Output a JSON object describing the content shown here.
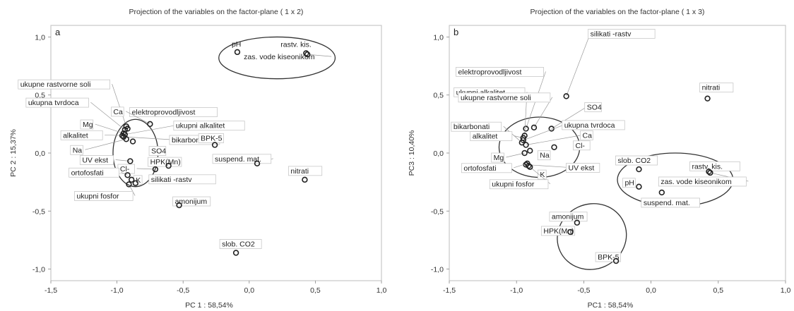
{
  "chart_data": [
    {
      "type": "scatter",
      "title": "Projection of the variables on the factor-plane (  1 x  2)",
      "panel_label": "a",
      "xlabel": "PC 1 : 58,54%",
      "ylabel": "PC 2 : 15,37%",
      "xlim": [
        -1.5,
        1.0
      ],
      "ylim": [
        -1.1,
        1.1
      ],
      "xticks": [
        "-1,5",
        "-1,0",
        "-0,5",
        "0,0",
        "0,5",
        "1,0"
      ],
      "yticks": [
        "1,0",
        "0,5",
        "0,0",
        "-0,5",
        "-1,0"
      ],
      "grid": false,
      "points": [
        {
          "label": "pH",
          "x": -0.09,
          "y": 0.87
        },
        {
          "label": "rastv. kis.",
          "x": 0.43,
          "y": 0.86
        },
        {
          "label": "zas. vode kiseonikom",
          "x": 0.44,
          "y": 0.85
        },
        {
          "label": "ukupne rastvorne soli",
          "x": -0.93,
          "y": 0.23
        },
        {
          "label": "ukupna tvrdoca",
          "x": -0.94,
          "y": 0.2
        },
        {
          "label": "elektroprovodljivost",
          "x": -0.92,
          "y": 0.21
        },
        {
          "label": "Mg",
          "x": -0.95,
          "y": 0.17
        },
        {
          "label": "alkalitet",
          "x": -0.96,
          "y": 0.15
        },
        {
          "label": "Ca",
          "x": -0.75,
          "y": 0.25
        },
        {
          "label": "ukupni alkalitet",
          "x": -0.94,
          "y": 0.16
        },
        {
          "label": "bikarbonati",
          "x": -0.95,
          "y": 0.14
        },
        {
          "label": "Na",
          "x": -0.93,
          "y": 0.12
        },
        {
          "label": "SO4",
          "x": -0.88,
          "y": 0.1
        },
        {
          "label": "BPK-5",
          "x": -0.26,
          "y": 0.07
        },
        {
          "label": "UV ekst",
          "x": -0.9,
          "y": -0.07
        },
        {
          "label": "HPK(Mn)",
          "x": -0.61,
          "y": -0.11
        },
        {
          "label": "Cl-",
          "x": -0.71,
          "y": -0.14
        },
        {
          "label": "suspend. mat.",
          "x": 0.06,
          "y": -0.09
        },
        {
          "label": "ortofosfati",
          "x": -0.92,
          "y": -0.19
        },
        {
          "label": "K",
          "x": -0.89,
          "y": -0.23
        },
        {
          "label": "silikati -rastv",
          "x": -0.86,
          "y": -0.26
        },
        {
          "label": "nitrati",
          "x": 0.42,
          "y": -0.23
        },
        {
          "label": "ukupni fosfor",
          "x": -0.91,
          "y": -0.27
        },
        {
          "label": "amonijum",
          "x": -0.53,
          "y": -0.45
        },
        {
          "label": "slob. CO2",
          "x": -0.1,
          "y": -0.86
        }
      ],
      "ellipses": [
        {
          "cx": 0.21,
          "cy": 0.82,
          "rx": 0.44,
          "ry": 0.18,
          "rotate_deg": 0
        },
        {
          "cx": -0.86,
          "cy": 0.0,
          "rx": 0.17,
          "ry": 0.29,
          "rotate_deg": 0
        }
      ]
    },
    {
      "type": "scatter",
      "title": "Projection of the variables on the factor-plane (  1 x  3)",
      "panel_label": "b",
      "xlabel": "PC1 : 58,54%",
      "ylabel": "PC3 : 10,40%",
      "xlim": [
        -1.5,
        1.0
      ],
      "ylim": [
        -1.1,
        1.1
      ],
      "xticks": [
        "-1,5",
        "-1,0",
        "-0,5",
        "0,0",
        "0,5",
        "1,0"
      ],
      "yticks": [
        "1,0",
        "0,5",
        "0,0",
        "-0,5",
        "-1,0"
      ],
      "grid": false,
      "points": [
        {
          "label": "silikati -rastv",
          "x": -0.63,
          "y": 0.49
        },
        {
          "label": "elektroprovodljivost",
          "x": -0.93,
          "y": 0.21
        },
        {
          "label": "ukupni alkalitet",
          "x": -0.94,
          "y": 0.15
        },
        {
          "label": "ukupne rastvorne soli",
          "x": -0.87,
          "y": 0.22
        },
        {
          "label": "SO4",
          "x": -0.74,
          "y": 0.21
        },
        {
          "label": "ukupna tvrdoca",
          "x": -0.95,
          "y": 0.11
        },
        {
          "label": "bikarbonati",
          "x": -0.96,
          "y": 0.09
        },
        {
          "label": "Ca",
          "x": -0.93,
          "y": 0.07
        },
        {
          "label": "alkalitet",
          "x": -0.95,
          "y": 0.13
        },
        {
          "label": "Cl-",
          "x": -0.72,
          "y": 0.05
        },
        {
          "label": "Mg",
          "x": -0.94,
          "y": 0.0
        },
        {
          "label": "Na",
          "x": -0.9,
          "y": 0.02
        },
        {
          "label": "UV ekst",
          "x": -0.93,
          "y": -0.1
        },
        {
          "label": "K",
          "x": -0.91,
          "y": -0.11
        },
        {
          "label": "ortofosfati",
          "x": -0.92,
          "y": -0.09
        },
        {
          "label": "ukupni fosfor",
          "x": -0.9,
          "y": -0.12
        },
        {
          "label": "nitrati",
          "x": 0.42,
          "y": 0.47
        },
        {
          "label": "slob. CO2",
          "x": -0.09,
          "y": -0.14
        },
        {
          "label": "rastv. kis.",
          "x": 0.43,
          "y": -0.16
        },
        {
          "label": "zas. vode kiseonikom",
          "x": 0.44,
          "y": -0.17
        },
        {
          "label": "pH",
          "x": -0.09,
          "y": -0.29
        },
        {
          "label": "suspend. mat.",
          "x": 0.08,
          "y": -0.34
        },
        {
          "label": "amonijum",
          "x": -0.55,
          "y": -0.6
        },
        {
          "label": "HPK(Mn)",
          "x": -0.6,
          "y": -0.68
        },
        {
          "label": "BPK-5",
          "x": -0.26,
          "y": -0.93
        }
      ],
      "ellipses": [
        {
          "cx": -0.83,
          "cy": 0.05,
          "rx": 0.3,
          "ry": 0.26,
          "rotate_deg": 0
        },
        {
          "cx": 0.18,
          "cy": -0.23,
          "rx": 0.43,
          "ry": 0.23,
          "rotate_deg": 0
        },
        {
          "cx": -0.44,
          "cy": -0.72,
          "rx": 0.26,
          "ry": 0.28,
          "rotate_deg": -25
        }
      ]
    }
  ]
}
